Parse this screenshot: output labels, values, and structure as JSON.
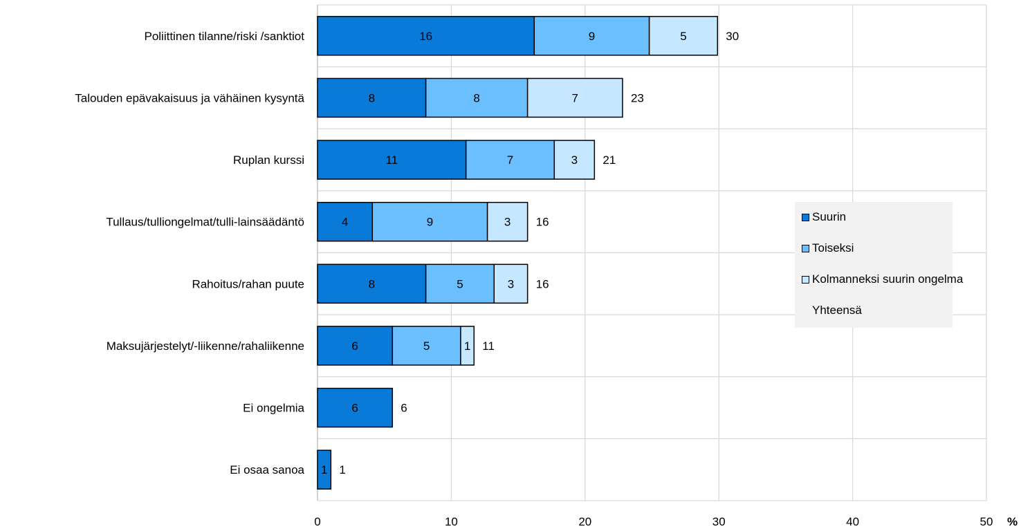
{
  "chart_data": {
    "type": "bar",
    "orientation": "horizontal",
    "stacked": true,
    "categories": [
      "Poliittinen tilanne/riski /sanktiot",
      "Talouden epävakaisuus ja vähäinen kysyntä",
      "Ruplan kurssi",
      "Tullaus/tulliongelmat/tulli-lainsäädäntö",
      "Rahoitus/rahan puute",
      "Maksujärjestelyt/-liikenne/rahaliikenne",
      "Ei ongelmia",
      "Ei osaa sanoa"
    ],
    "series": [
      {
        "name": "Suurin",
        "color": "#0a7ad8",
        "values": [
          16.2,
          8.1,
          11.1,
          4.1,
          8.1,
          5.6,
          5.6,
          1.0
        ],
        "labels": [
          "16",
          "8",
          "11",
          "4",
          "8",
          "6",
          "6",
          "1"
        ]
      },
      {
        "name": "Toiseksi",
        "color": "#6bbfff",
        "values": [
          8.6,
          7.6,
          6.6,
          8.6,
          5.1,
          5.1,
          0,
          0
        ],
        "labels": [
          "9",
          "8",
          "7",
          "9",
          "5",
          "5",
          "",
          ""
        ]
      },
      {
        "name": "Kolmanneksi suurin ongelma",
        "color": "#c5e7ff",
        "values": [
          5.1,
          7.1,
          3.0,
          3.0,
          2.5,
          1.0,
          0,
          0
        ],
        "labels": [
          "5",
          "7",
          "3",
          "3",
          "3",
          "1",
          "",
          ""
        ]
      }
    ],
    "totals": [
      "30",
      "23",
      "21",
      "16",
      "16",
      "11",
      "6",
      "1"
    ],
    "totals_series_name": "Yhteensä",
    "xlim": [
      0,
      50
    ],
    "xticks": [
      "0",
      "10",
      "20",
      "30",
      "40",
      "50"
    ],
    "x_unit": "%",
    "grid": true,
    "legend_position": "right"
  }
}
